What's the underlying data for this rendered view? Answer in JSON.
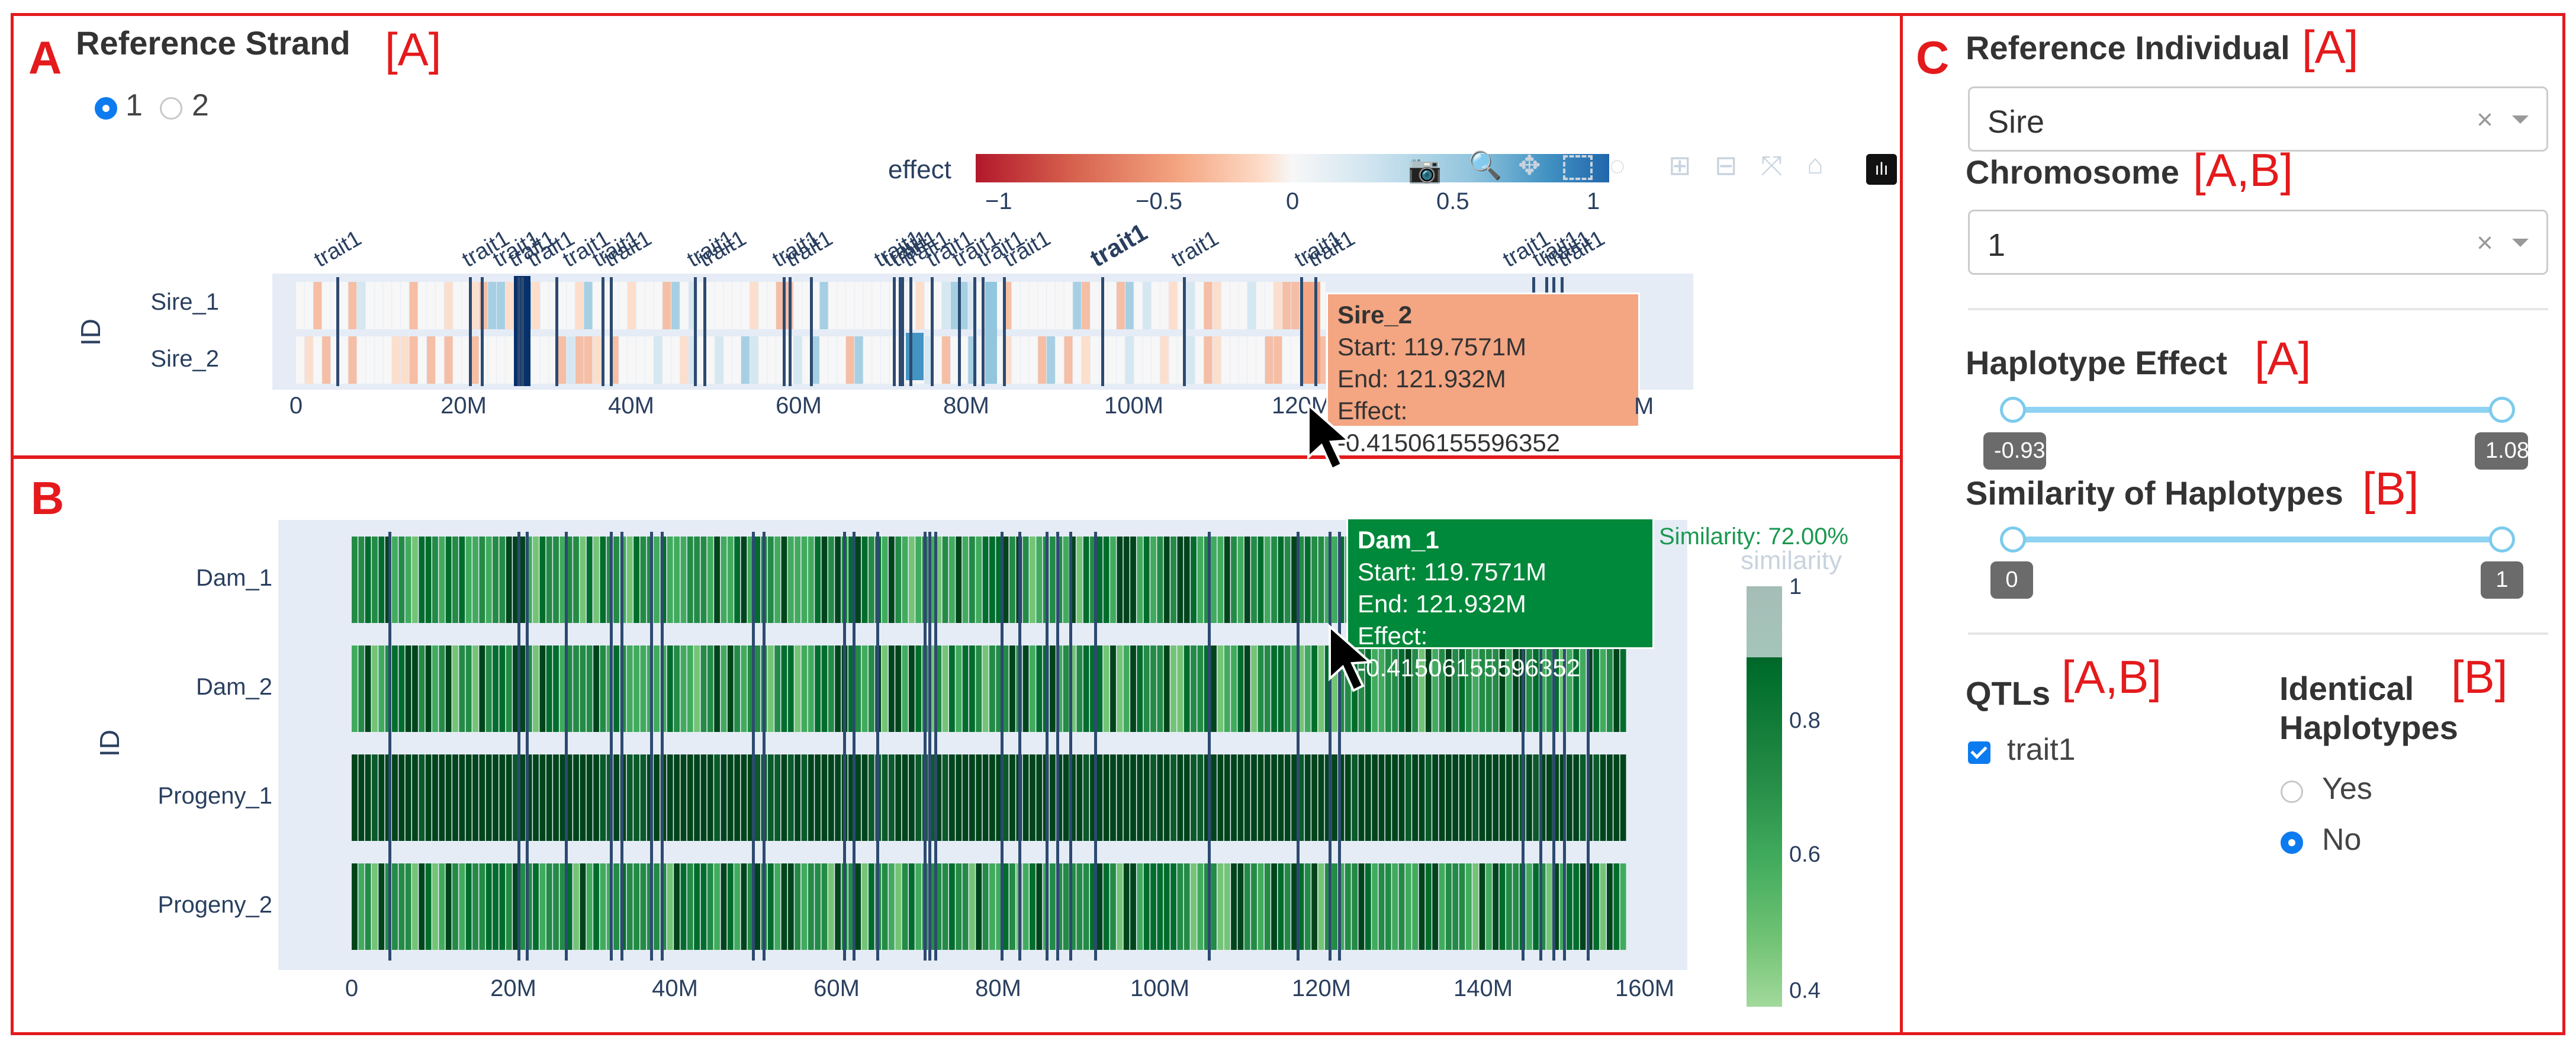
{
  "panel_a": {
    "letter": "A",
    "strand_title": "Reference Strand",
    "strand_tag": "[A]",
    "strand_options": [
      "1",
      "2"
    ],
    "selected_strand": "1",
    "colorbar_title": "effect",
    "colorbar_ticks": [
      "−1",
      "−0.5",
      "0",
      "0.5",
      "1"
    ],
    "trait_label": "trait1",
    "row_labels": [
      "Sire_1",
      "Sire_2"
    ],
    "y_axis_title": "ID",
    "x_ticks": [
      "0",
      "20M",
      "40M",
      "60M",
      "80M",
      "100M",
      "120M",
      "140M"
    ],
    "x_max_label": "M",
    "tooltip": {
      "title": "Sire_2",
      "start": "Start: 119.7571M",
      "end": "End: 121.932M",
      "effect": "Effect: -0.41506155596352",
      "bg": "#f4a582"
    }
  },
  "panel_b": {
    "letter": "B",
    "row_labels": [
      "Dam_1",
      "Dam_2",
      "Progeny_1",
      "Progeny_2"
    ],
    "y_axis_title": "ID",
    "x_ticks": [
      "0",
      "20M",
      "40M",
      "60M",
      "80M",
      "100M",
      "120M",
      "140M",
      "160M"
    ],
    "similarity_header": "Similarity: 72.00%",
    "colorbar_title": "similarity",
    "colorbar_ticks": [
      "1",
      "0.8",
      "0.6",
      "0.4"
    ],
    "tooltip": {
      "title": "Dam_1",
      "start": "Start: 119.7571M",
      "end": "End: 121.932M",
      "effect": "Effect: -0.41506155596352",
      "bg": "#00893a"
    }
  },
  "panel_c": {
    "letter": "C",
    "reference_individual": {
      "label": "Reference Individual",
      "tag": "[A]",
      "value": "Sire"
    },
    "chromosome": {
      "label": "Chromosome",
      "tag": "[A,B]",
      "value": "1"
    },
    "haplotype_effect": {
      "label": "Haplotype Effect",
      "tag": "[A]",
      "min": "-0.93",
      "max": "1.08"
    },
    "similarity": {
      "label": "Similarity of Haplotypes",
      "tag": "[B]",
      "min": "0",
      "max": "1"
    },
    "qtls": {
      "label": "QTLs",
      "tag": "[A,B]",
      "option": "trait1",
      "checked": true
    },
    "identical": {
      "label_line1": "Identical",
      "label_line2": "Haplotypes",
      "tag": "[B]",
      "options": [
        "Yes",
        "No"
      ],
      "selected": "No"
    }
  },
  "colors": {
    "frame": "#e41a1c",
    "effect_neg": "#b2182b",
    "effect_pos": "#2166ac",
    "sim_high": "#00441b",
    "sim_low": "#74c476",
    "qtl_line": "#2d4a70",
    "accent": "#0d7bf0"
  },
  "icons": [
    "camera-icon",
    "zoom-icon",
    "pan-icon",
    "box-select-icon",
    "lasso-icon",
    "zoom-in-icon",
    "zoom-out-icon",
    "autoscale-icon",
    "home-icon",
    "plotly-logo-icon"
  ]
}
